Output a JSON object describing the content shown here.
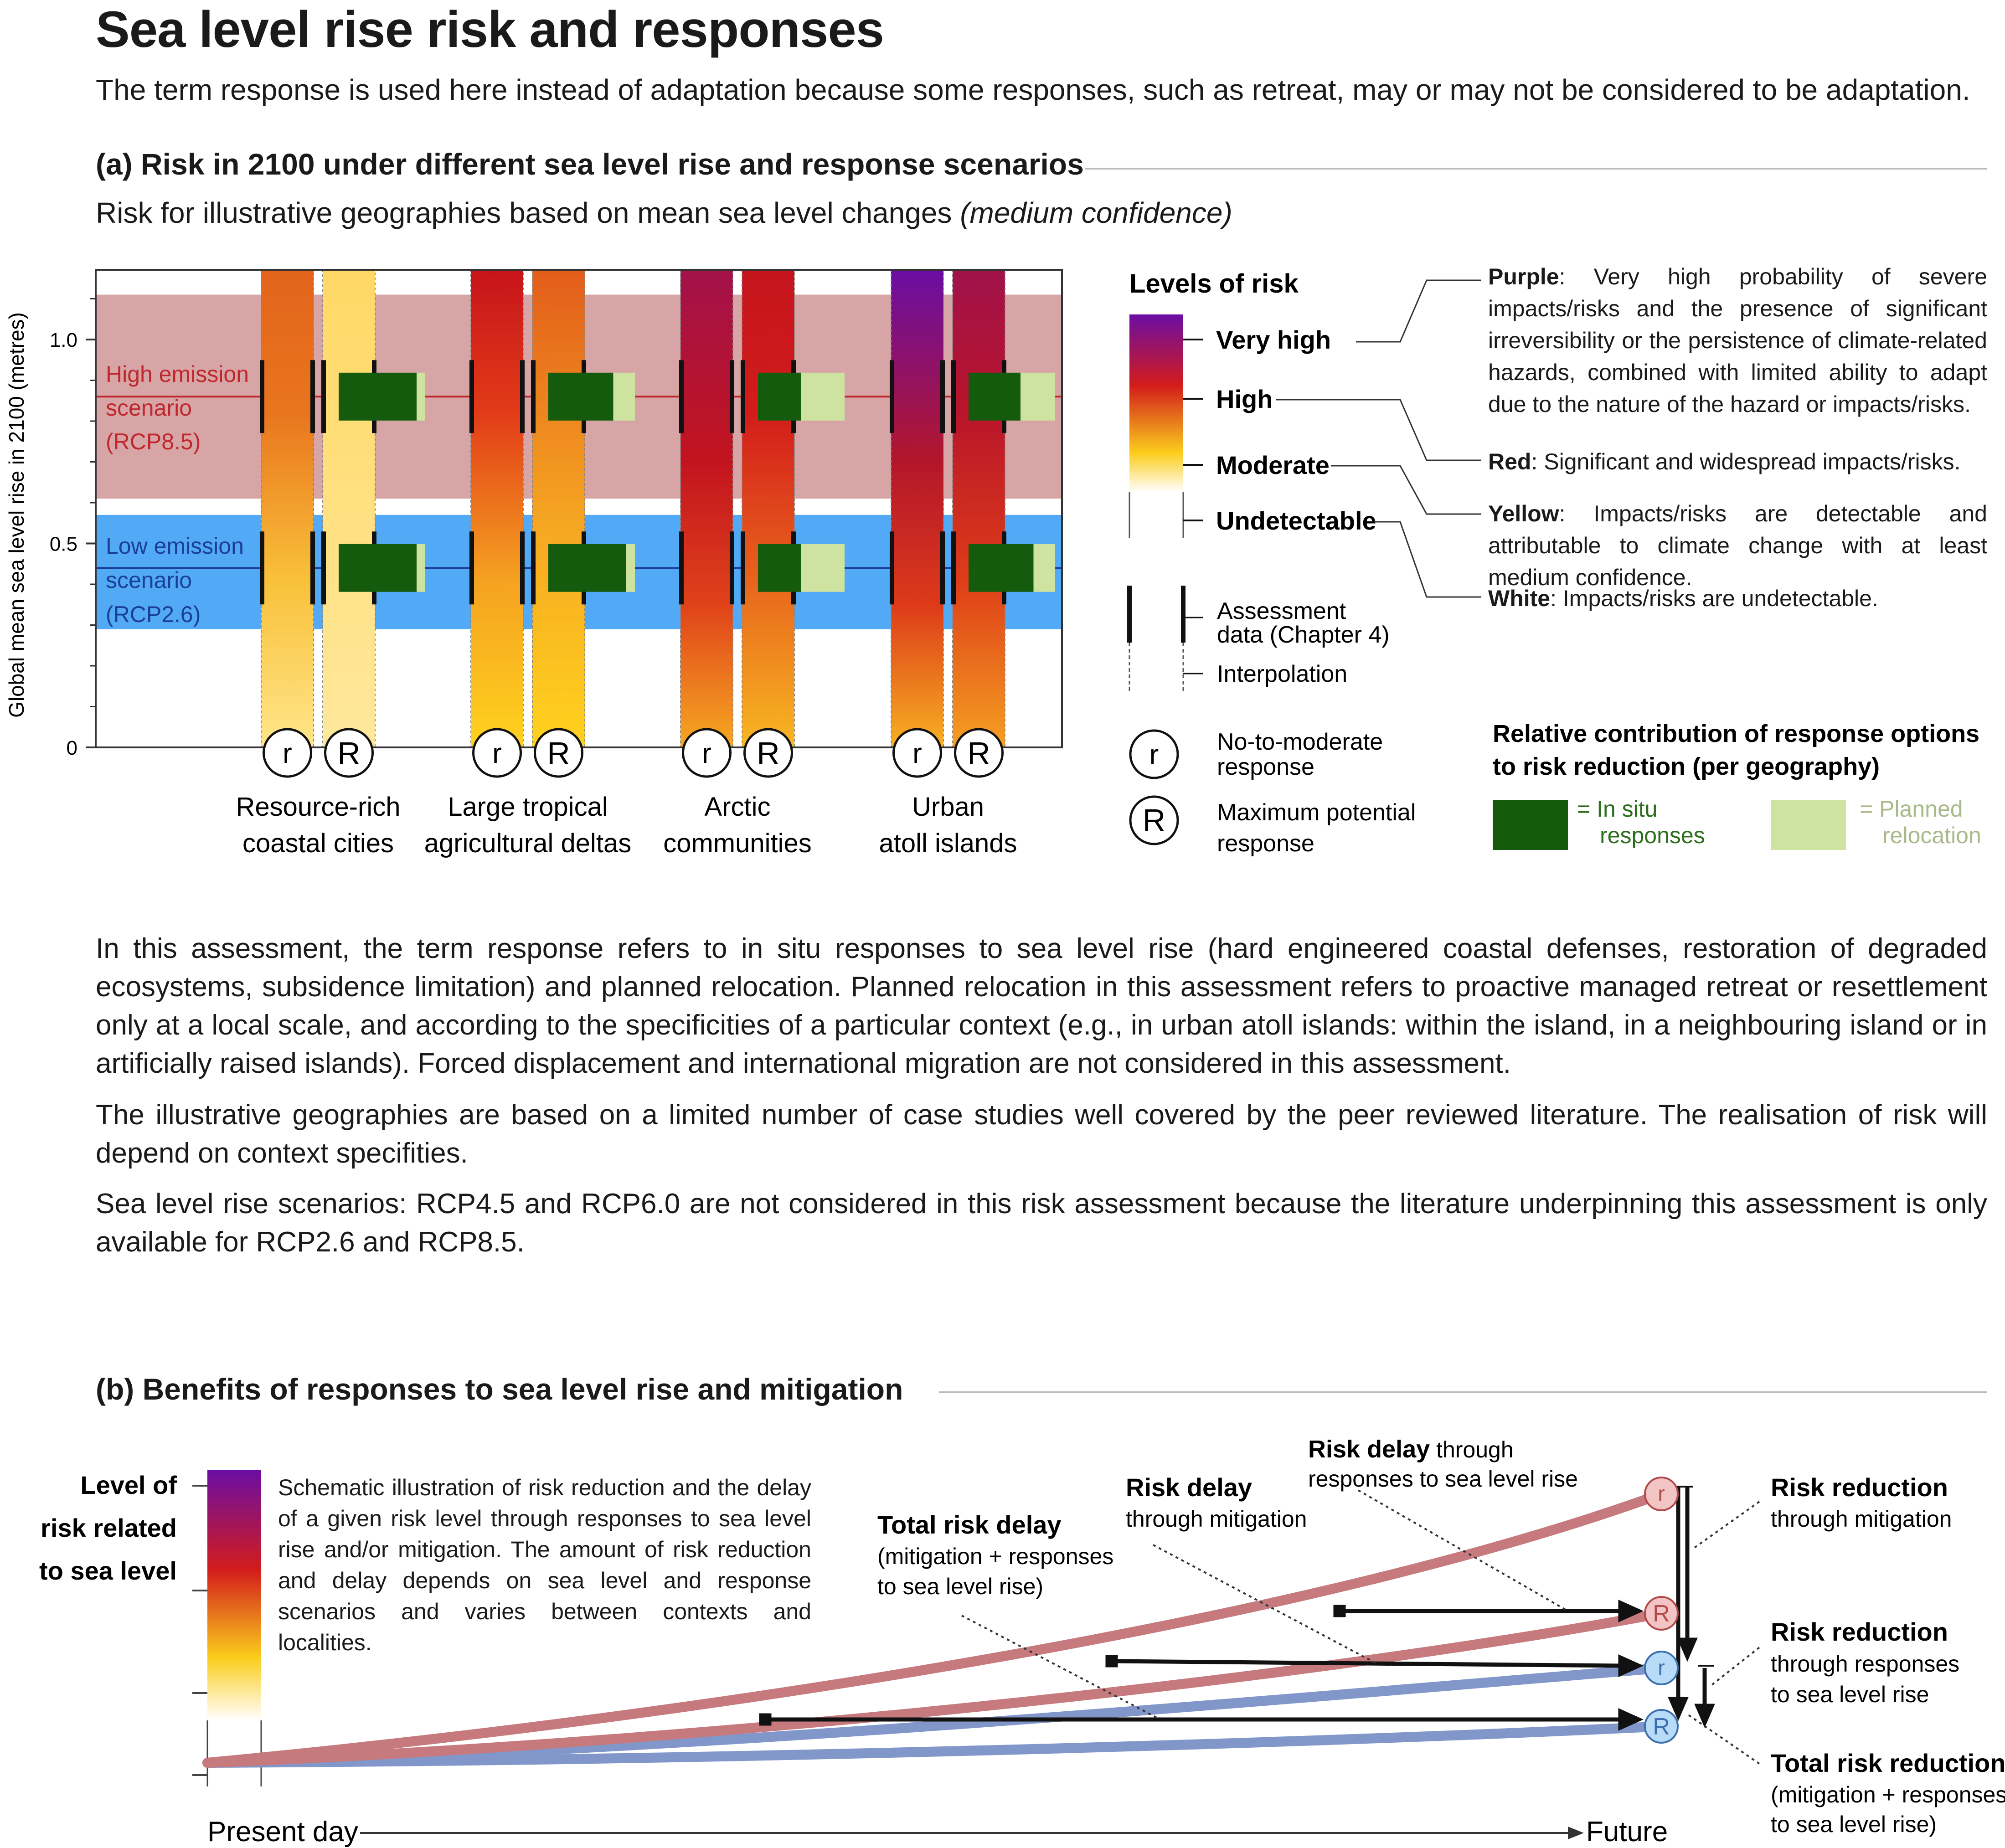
{
  "title": "Sea level rise risk and responses",
  "subtitle": "The term response is used here instead of adaptation because some responses, such as retreat, may or may not be considered to be adaptation.",
  "section_a": {
    "title": "(a) Risk in 2100 under different sea level rise and response scenarios",
    "subtitle_main": "Risk for illustrative geographies based on mean sea level changes ",
    "subtitle_italic": "(medium confidence)",
    "ylabel": "Global mean sea level rise in 2100 (metres)",
    "yticks": [
      "0",
      "0.5",
      "1.0"
    ],
    "scenarios": {
      "high": {
        "line1": "High emission",
        "line2": "scenario",
        "line3": "(RCP8.5)",
        "center": 0.86,
        "band": [
          0.61,
          1.11
        ],
        "color": "#c0272d",
        "band_color": "#d7a5a6"
      },
      "low": {
        "line1": "Low emission",
        "line2": "scenario",
        "line3": "(RCP2.6)",
        "center": 0.44,
        "band": [
          0.29,
          0.57
        ],
        "color": "#1b3f99",
        "band_color": "#52a9f5"
      }
    },
    "response_symbols": {
      "r": "r",
      "R": "R"
    },
    "geographies": [
      {
        "line1": "Resource-rich",
        "line2": "coastal cities",
        "r_stops": [
          [
            "0",
            "#ffe58a"
          ],
          [
            "0.35",
            "#f9c13a"
          ],
          [
            "0.7",
            "#e9751e"
          ],
          [
            "1",
            "#e2641b"
          ]
        ],
        "R_stops": [
          [
            "0",
            "#ffe89c"
          ],
          [
            "1",
            "#ffd865"
          ]
        ],
        "high_insitu": 0.9,
        "high_planned": 0.1,
        "low_insitu": 0.9,
        "low_planned": 0.1
      },
      {
        "line1": "Large tropical",
        "line2": "agricultural deltas",
        "r_stops": [
          [
            "0",
            "#ffd21e"
          ],
          [
            "0.35",
            "#f5a221"
          ],
          [
            "0.7",
            "#e23b18"
          ],
          [
            "1",
            "#c7141b"
          ]
        ],
        "R_stops": [
          [
            "0",
            "#ffd21e"
          ],
          [
            "0.45",
            "#f6a822"
          ],
          [
            "1",
            "#e35d1b"
          ]
        ],
        "high_insitu": 0.75,
        "high_planned": 0.25,
        "low_insitu": 0.9,
        "low_planned": 0.1
      },
      {
        "line1": "Arctic",
        "line2": "communities",
        "r_stops": [
          [
            "0",
            "#f6a822"
          ],
          [
            "0.3",
            "#e0421a"
          ],
          [
            "0.6",
            "#c2141f"
          ],
          [
            "1",
            "#a3124a"
          ]
        ],
        "R_stops": [
          [
            "0",
            "#f8b722"
          ],
          [
            "0.35",
            "#e8641c"
          ],
          [
            "0.7",
            "#d31c1b"
          ],
          [
            "1",
            "#c5141d"
          ]
        ],
        "high_insitu": 0.5,
        "high_planned": 0.5,
        "low_insitu": 0.5,
        "low_planned": 0.5
      },
      {
        "line1": "Urban",
        "line2": "atoll islands",
        "r_stops": [
          [
            "0",
            "#f7b022"
          ],
          [
            "0.3",
            "#dd3a19"
          ],
          [
            "0.6",
            "#b3162b"
          ],
          [
            "1",
            "#6a0ea4"
          ]
        ],
        "R_stops": [
          [
            "0",
            "#f5a021"
          ],
          [
            "0.35",
            "#de3d19"
          ],
          [
            "0.7",
            "#b9142a"
          ],
          [
            "1",
            "#a1124b"
          ]
        ],
        "high_insitu": 0.6,
        "high_planned": 0.4,
        "low_insitu": 0.75,
        "low_planned": 0.25
      }
    ],
    "legend": {
      "title": "Levels of risk",
      "levels": [
        "Very high",
        "High",
        "Moderate",
        "Undetectable"
      ],
      "level_colors": [
        "#6a0ea4",
        "#d31c1b",
        "#fbcd1c",
        "#ffffff"
      ],
      "descriptions": [
        {
          "key": "Purple",
          "text": ": Very high probability of severe impacts/risks and the presence of significant irreversibility or the persistence of climate-related hazards, combined with limited ability to adapt due to the nature of the hazard or impacts/risks."
        },
        {
          "key": "Red",
          "text": ": Significant and widespread impacts/risks."
        },
        {
          "key": "Yellow",
          "text": ": Impacts/risks are detectable and attributable to climate change with at least medium confidence."
        },
        {
          "key": "White",
          "text": ": Impacts/risks are undetectable."
        }
      ],
      "assessment_line1": "Assessment",
      "assessment_line2": "data (Chapter 4)",
      "interpolation": "Interpolation",
      "r_line1": "No-to-moderate",
      "r_line2": "response",
      "R_line1": "Maximum potential",
      "R_line2": "response",
      "contrib_line1": "Relative contribution of response options",
      "contrib_line2": "to risk reduction (per geography)",
      "insitu_line1": "= In situ",
      "insitu_line2": "responses",
      "planned_line1": "= Planned",
      "planned_line2": "relocation",
      "insitu_color": "#155b0e",
      "planned_color": "#cfe3a1"
    }
  },
  "paragraphs": [
    "In this assessment, the term response refers to in situ responses to sea level rise (hard engineered coastal defenses, restoration of degraded ecosystems, subsidence limitation) and planned relocation. Planned relocation in this assessment refers to proactive managed retreat or resettlement only at a local scale, and according to the specificities of a particular context (e.g., in urban atoll islands: within the island, in a neighbouring island or in artificially raised islands). Forced displacement and international migration are not considered in this assessment.",
    "The illustrative geographies are based on a limited number of case studies well covered by the peer reviewed literature. The realisation of risk will depend on context specifities.",
    "Sea level rise scenarios: RCP4.5 and RCP6.0 are not considered in this risk assessment because the literature underpinning this assessment is only available for RCP2.6 and RCP8.5."
  ],
  "section_b": {
    "title": "(b) Benefits of responses to sea level rise and mitigation",
    "ylabel_line1": "Level of",
    "ylabel_line2": "risk related",
    "ylabel_line3": "to sea level",
    "description": "Schematic illustration of risk reduction and the delay of a given risk level through responses to sea level rise and/or mitigation. The amount of risk reduction and delay depends on sea level and response scenarios and varies between contexts and localities.",
    "x_start": "Present day",
    "x_end": "Future",
    "curve_colors": {
      "high": "#c77a7e",
      "low": "#8196c9"
    },
    "end_labels": [
      "r",
      "R",
      "r",
      "R"
    ],
    "annotations": {
      "total_delay_bold": "Total risk delay",
      "total_delay_l2": "(mitigation + responses",
      "total_delay_l3": "to sea level rise)",
      "delay_mit_bold": "Risk delay",
      "delay_mit_l2": "through mitigation",
      "delay_resp_bold": "Risk delay",
      "delay_resp_rest": " through",
      "delay_resp_l2": "responses to sea level rise",
      "red_mit_bold": "Risk reduction",
      "red_mit_l2": "through mitigation",
      "red_resp_bold": "Risk reduction",
      "red_resp_l2": "through responses",
      "red_resp_l3": "to sea level rise",
      "red_total_bold": "Total risk reduction",
      "red_total_l2": "(mitigation + responses",
      "red_total_l3": "to sea level rise)"
    }
  }
}
